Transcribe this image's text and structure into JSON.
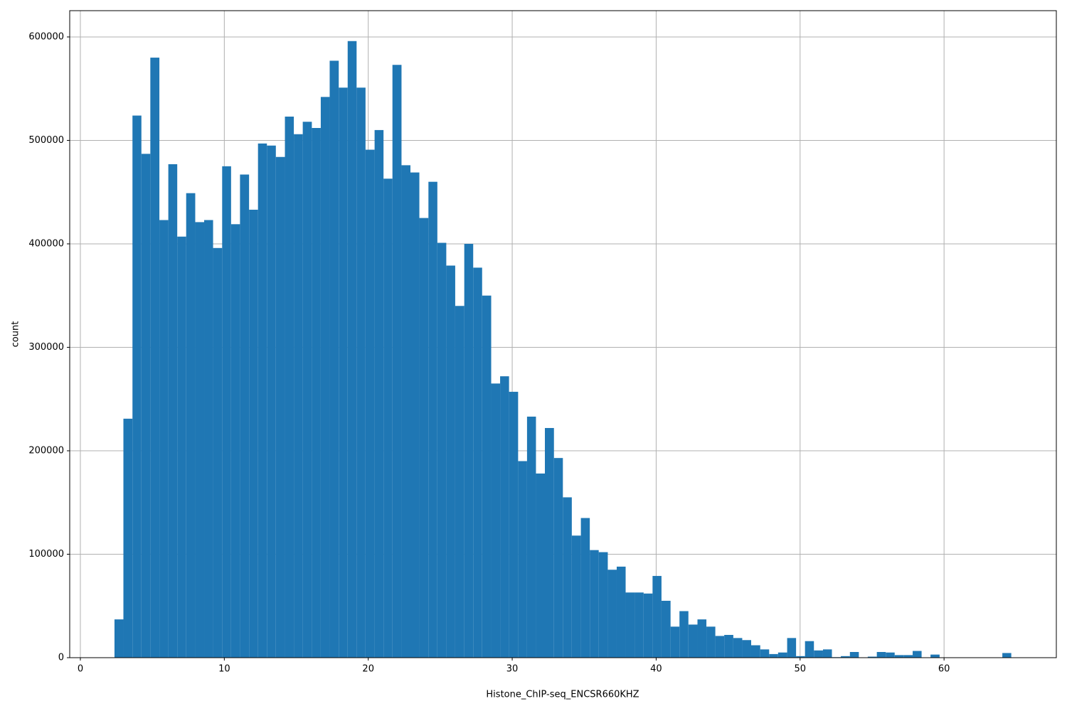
{
  "chart_data": {
    "type": "histogram",
    "xlabel": "Histone_ChIP-seq_ENCSR660KHZ",
    "ylabel": "count",
    "color": "#1f77b4",
    "grid": true,
    "bins": [
      2.37,
      2.99,
      3.62,
      4.24,
      4.86,
      5.49,
      6.11,
      6.73,
      7.35,
      7.98,
      8.6,
      9.22,
      9.85,
      10.47,
      11.09,
      11.72,
      12.34,
      12.96,
      13.58,
      14.21,
      14.83,
      15.45,
      16.08,
      16.7,
      17.32,
      17.95,
      18.57,
      19.19,
      19.81,
      20.44,
      21.06,
      21.68,
      22.31,
      22.93,
      23.55,
      24.18,
      24.8,
      25.42,
      26.04,
      26.67,
      27.29,
      27.91,
      28.54,
      29.16,
      29.78,
      30.41,
      31.03,
      31.65,
      32.27,
      32.9,
      33.52,
      34.14,
      34.77,
      35.39,
      36.01,
      36.64,
      37.26,
      37.88,
      38.5,
      39.13,
      39.75,
      40.37,
      41.0,
      41.62,
      42.24,
      42.87,
      43.49,
      44.11,
      44.73,
      45.36,
      45.98,
      46.6,
      47.23,
      47.85,
      48.47,
      49.1,
      49.72,
      50.34,
      50.96,
      51.59,
      52.21,
      52.83,
      53.46,
      54.08,
      54.7,
      55.33,
      55.95,
      56.57,
      57.19,
      57.82,
      58.44,
      59.06,
      59.69,
      60.31,
      60.93,
      61.56,
      62.18,
      62.8,
      63.42,
      64.05,
      64.67
    ],
    "values": [
      37000,
      231000,
      524000,
      487000,
      580000,
      423000,
      477000,
      407000,
      449000,
      421000,
      423000,
      396000,
      475000,
      419000,
      467000,
      433000,
      497000,
      495000,
      484000,
      523000,
      506000,
      518000,
      512000,
      542000,
      577000,
      551000,
      596000,
      551000,
      491000,
      510000,
      463000,
      573000,
      476000,
      469000,
      425000,
      460000,
      401000,
      379000,
      340000,
      400000,
      377000,
      350000,
      265000,
      272000,
      257000,
      190000,
      233000,
      178000,
      222000,
      193000,
      155000,
      118000,
      135000,
      104000,
      102000,
      85000,
      88000,
      63000,
      63000,
      62000,
      79000,
      55000,
      30000,
      45000,
      32000,
      37000,
      30000,
      21000,
      22000,
      19000,
      17000,
      12000,
      8000,
      3500,
      5000,
      19000,
      1500,
      16000,
      7000,
      8000,
      500,
      1500,
      5500,
      300,
      1000,
      5500,
      5000,
      2500,
      2500,
      6500,
      0,
      3000,
      0,
      0,
      0,
      0,
      0,
      0,
      0,
      4500
    ],
    "xlim": [
      -0.74,
      67.8
    ],
    "ylim": [
      0,
      625400
    ],
    "xticks": [
      0,
      10,
      20,
      30,
      40,
      50,
      60
    ],
    "yticks": [
      0,
      100000,
      200000,
      300000,
      400000,
      500000,
      600000
    ]
  }
}
